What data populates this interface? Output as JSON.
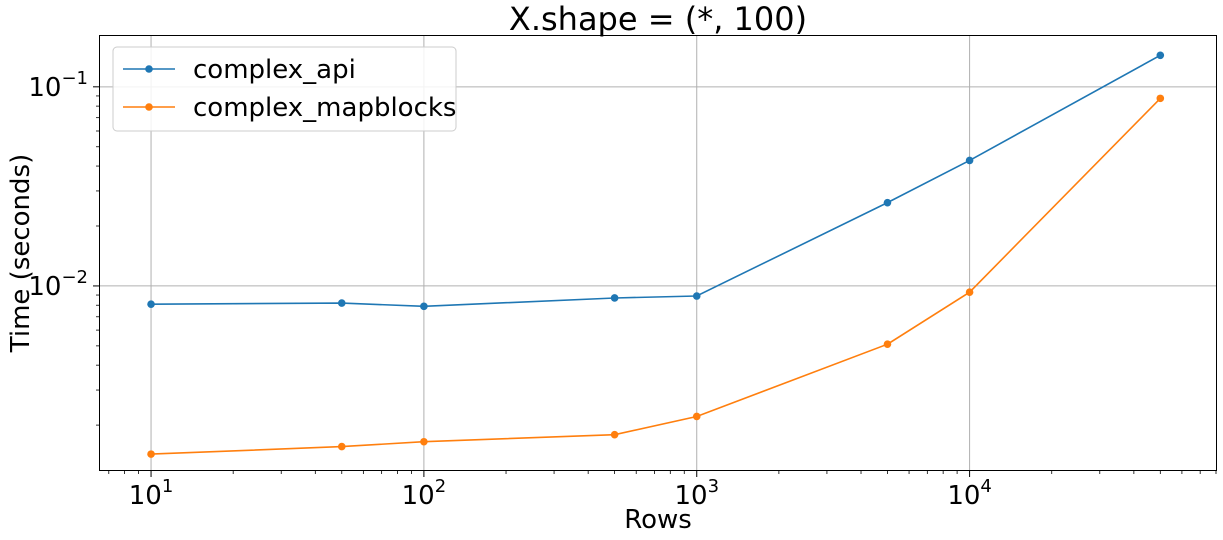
{
  "chart_data": {
    "type": "line",
    "title": "X.shape = (*, 100)",
    "xlabel": "Rows",
    "ylabel": "Time (seconds)",
    "x_scale": "log",
    "y_scale": "log",
    "grid": true,
    "legend_position": "top-left",
    "xlim": [
      6.5,
      80000
    ],
    "ylim": [
      0.00119,
      0.18
    ],
    "x_ticks": [
      {
        "value": 10,
        "base": "10",
        "exp": "1"
      },
      {
        "value": 100,
        "base": "10",
        "exp": "2"
      },
      {
        "value": 1000,
        "base": "10",
        "exp": "3"
      },
      {
        "value": 10000,
        "base": "10",
        "exp": "4"
      }
    ],
    "y_ticks": [
      {
        "value": 0.01,
        "base": "10",
        "exp": "−2"
      },
      {
        "value": 0.1,
        "base": "10",
        "exp": "−1"
      }
    ],
    "x": [
      10,
      50,
      100,
      500,
      1000,
      5000,
      10000,
      50000
    ],
    "series": [
      {
        "name": "complex_api",
        "color": "#1f77b4",
        "values": [
          0.0081,
          0.0082,
          0.0079,
          0.0087,
          0.0089,
          0.0262,
          0.0427,
          0.144
        ]
      },
      {
        "name": "complex_mapblocks",
        "color": "#ff7f0e",
        "values": [
          0.00143,
          0.00156,
          0.00165,
          0.00179,
          0.00221,
          0.0051,
          0.0093,
          0.0875
        ]
      }
    ]
  }
}
